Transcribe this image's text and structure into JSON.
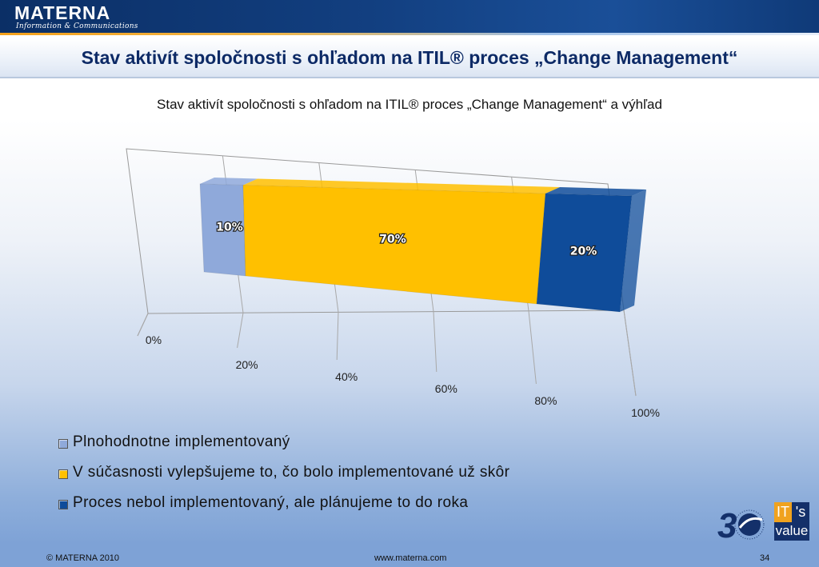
{
  "header": {
    "logo": "MATERNA",
    "logo_tagline": "Information & Communications"
  },
  "slide": {
    "title": "Stav aktivít spoločnosti s ohľadom na ITIL® proces „Change Management“"
  },
  "chart_data": {
    "type": "bar",
    "orientation": "horizontal-stacked-3d",
    "title": "Stav aktivít spoločnosti s ohľadom na ITIL® proces „Change Management“ a výhľad",
    "xlim": [
      0,
      100
    ],
    "x_ticks": [
      "0%",
      "20%",
      "40%",
      "60%",
      "80%",
      "100%"
    ],
    "grid": true,
    "legend_position": "bottom-left",
    "series": [
      {
        "name": "Plnohodnotne implementovaný",
        "value": 10,
        "label": "10%",
        "color": "#8fa9da"
      },
      {
        "name": "V súčasnosti vylepšujeme to, čo bolo implementované už skôr",
        "value": 70,
        "label": "70%",
        "color": "#ffc000"
      },
      {
        "name": "Proces nebol implementovaný, ale plánujeme to do roka",
        "value": 20,
        "label": "20%",
        "color": "#0f4c9a"
      }
    ]
  },
  "branding": {
    "anniversary": "3",
    "its_it": "IT",
    "its_s": "'s",
    "its_value": "value"
  },
  "footer": {
    "copyright": "© MATERNA 2010",
    "url": "www.materna.com",
    "page": "34"
  }
}
